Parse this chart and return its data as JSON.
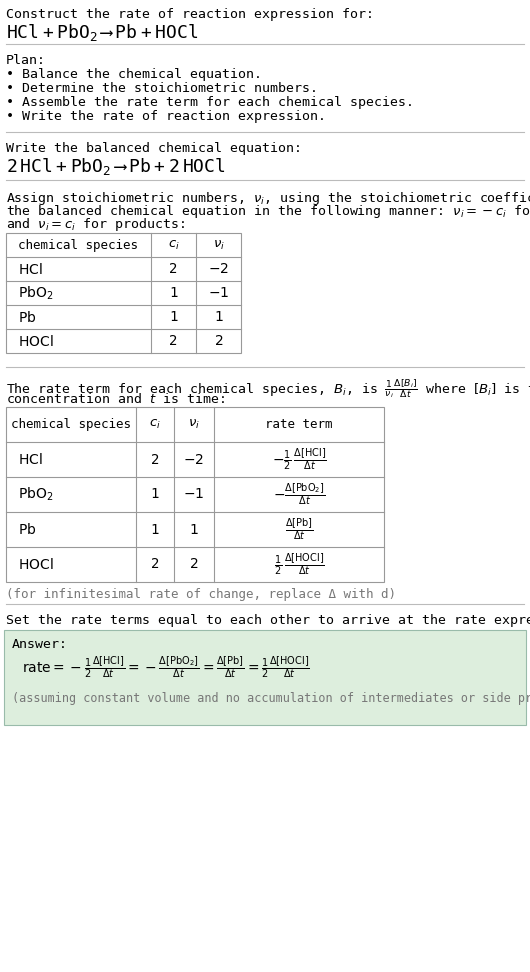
{
  "bg_color": "#ffffff",
  "text_color": "#000000",
  "light_gray": "#777777",
  "table_border": "#999999",
  "answer_bg": "#ddeedd",
  "section1_title": "Construct the rate of reaction expression for:",
  "plan_title": "Plan:",
  "plan_items": [
    "• Balance the chemical equation.",
    "• Determine the stoichiometric numbers.",
    "• Assemble the rate term for each chemical species.",
    "• Write the rate of reaction expression."
  ],
  "balanced_title": "Write the balanced chemical equation:",
  "infinitesimal_note": "(for infinitesimal rate of change, replace Δ with d)",
  "set_equal_text": "Set the rate terms equal to each other to arrive at the rate expression:",
  "answer_label": "Answer:",
  "answer_note": "(assuming constant volume and no accumulation of intermediates or side products)"
}
